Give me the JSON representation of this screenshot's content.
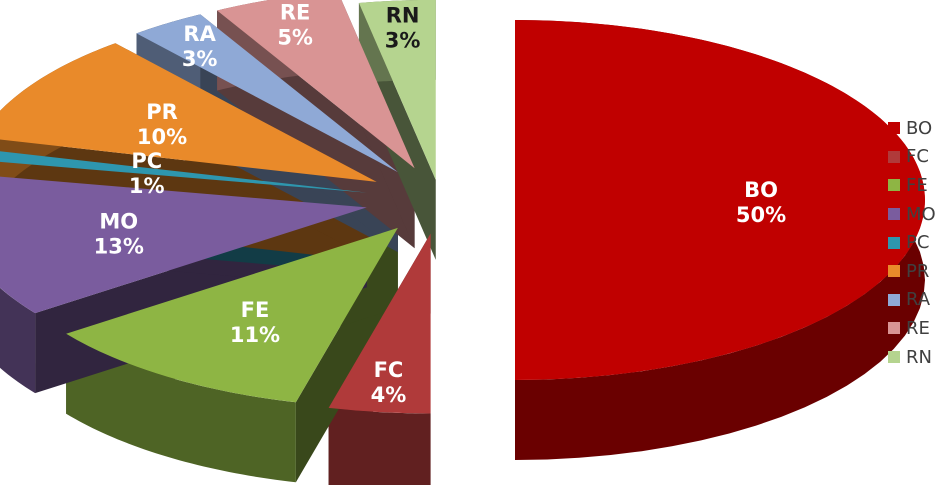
{
  "chart_data": {
    "type": "pie",
    "style": "3d-exploded",
    "legend_position": "right",
    "slices": [
      {
        "category": "BO",
        "value": 50,
        "label": "50%",
        "color": "#C00000"
      },
      {
        "category": "FC",
        "value": 4,
        "label": "4%",
        "color": "#B03A3A"
      },
      {
        "category": "FE",
        "value": 11,
        "label": "11%",
        "color": "#8EB544"
      },
      {
        "category": "MO",
        "value": 13,
        "label": "13%",
        "color": "#7A5C9E"
      },
      {
        "category": "PC",
        "value": 1,
        "label": "1%",
        "color": "#2E96AE"
      },
      {
        "category": "PR",
        "value": 10,
        "label": "10%",
        "color": "#E98A2A"
      },
      {
        "category": "RA",
        "value": 3,
        "label": "3%",
        "color": "#8FA9D6"
      },
      {
        "category": "RE",
        "value": 5,
        "label": "5%",
        "color": "#D99494"
      },
      {
        "category": "RN",
        "value": 3,
        "label": "3%",
        "color": "#B5D48F"
      }
    ]
  }
}
